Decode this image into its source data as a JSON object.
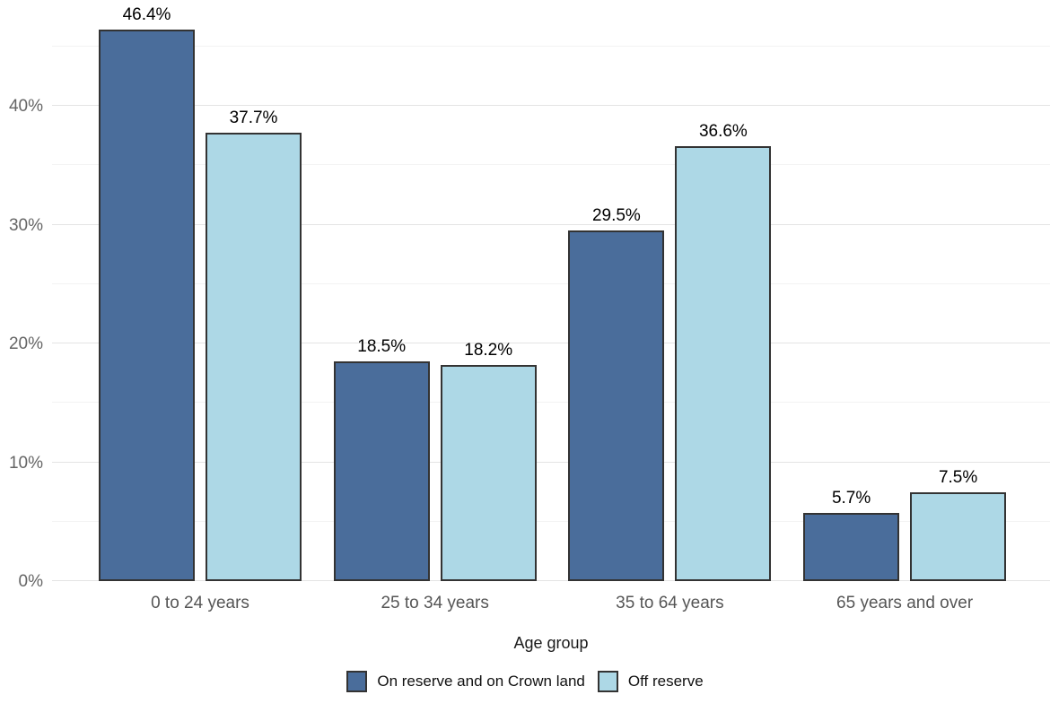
{
  "chart_data": {
    "type": "bar",
    "title": "",
    "xlabel": "Age group",
    "ylabel": "",
    "categories": [
      "0 to 24 years",
      "25 to 34 years",
      "35 to 64 years",
      "65 years and over"
    ],
    "series": [
      {
        "name": "On reserve and on Crown land",
        "color": "#4a6d9b",
        "values": [
          46.4,
          18.5,
          29.5,
          5.7
        ]
      },
      {
        "name": "Off reserve",
        "color": "#add8e6",
        "values": [
          37.7,
          18.2,
          36.6,
          7.5
        ]
      }
    ],
    "bar_labels": [
      [
        "46.4%",
        "18.5%",
        "29.5%",
        "5.7%"
      ],
      [
        "37.7%",
        "18.2%",
        "36.6%",
        "7.5%"
      ]
    ],
    "bar_border_color": "#333333",
    "y_axis": {
      "major_ticks": [
        {
          "value": 0,
          "label": "0%"
        },
        {
          "value": 10,
          "label": "10%"
        },
        {
          "value": 20,
          "label": "20%"
        },
        {
          "value": 30,
          "label": "30%"
        },
        {
          "value": 40,
          "label": "40%"
        }
      ],
      "minor_tick_values": [
        5,
        15,
        25,
        35,
        45
      ],
      "ylim": [
        0,
        48.9
      ]
    },
    "grid": "horizontal major+minor",
    "legend_position": "bottom-center",
    "colors": {
      "background": "#ffffff",
      "major_grid": "#e4e4e4",
      "minor_grid": "#f3f3f3",
      "tick_text": "#656565",
      "label_text": "#000000"
    }
  }
}
